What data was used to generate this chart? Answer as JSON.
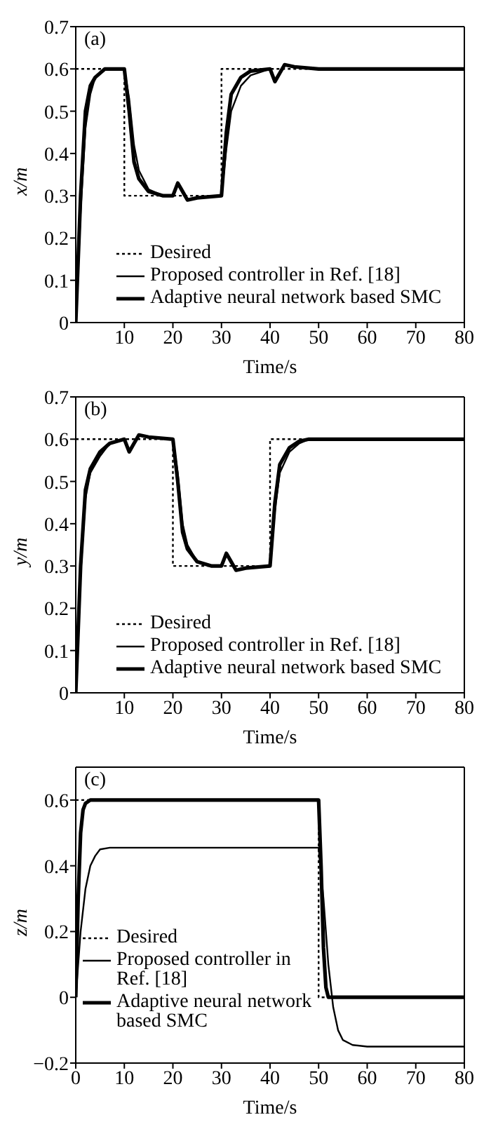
{
  "chart_data": [
    {
      "type": "line",
      "annotations": [
        "(a)"
      ],
      "xlabel": "Time/s",
      "ylabel": "x/m",
      "xlim": [
        0,
        80
      ],
      "xticks": [
        10,
        20,
        30,
        40,
        50,
        60,
        70,
        80
      ],
      "ylim": [
        0,
        0.7
      ],
      "yticks": [
        0,
        0.1,
        0.2,
        0.3,
        0.4,
        0.5,
        0.6,
        0.7
      ],
      "grid": false,
      "legend": "bottom left",
      "series": [
        {
          "name": "Desired",
          "color": "#000000",
          "line_style": "dotted",
          "x": [
            0,
            10,
            10,
            30,
            30,
            80
          ],
          "values": [
            0.6,
            0.6,
            0.3,
            0.3,
            0.6,
            0.6
          ]
        },
        {
          "name": "Proposed controller in Ref. [18]",
          "color": "#000000",
          "line_style": "solid",
          "x": [
            0,
            1,
            2,
            3,
            4,
            6,
            10,
            11,
            12,
            13,
            15,
            18,
            20,
            21,
            22,
            23,
            25,
            30,
            31,
            32,
            34,
            36,
            40,
            41,
            42,
            43,
            45,
            50,
            80
          ],
          "values": [
            0,
            0.26,
            0.46,
            0.54,
            0.58,
            0.6,
            0.6,
            0.53,
            0.42,
            0.36,
            0.315,
            0.3,
            0.3,
            0.33,
            0.31,
            0.29,
            0.295,
            0.3,
            0.41,
            0.5,
            0.56,
            0.585,
            0.6,
            0.57,
            0.59,
            0.61,
            0.605,
            0.6,
            0.6
          ]
        },
        {
          "name": "Adaptive neural network based SMC",
          "color": "#000000",
          "line_style": "solid",
          "x": [
            0,
            1,
            2,
            3,
            4,
            6,
            10,
            11,
            12,
            13,
            15,
            18,
            20,
            21,
            22,
            23,
            25,
            30,
            31,
            32,
            34,
            36,
            40,
            41,
            42,
            43,
            45,
            50,
            80
          ],
          "values": [
            0,
            0.3,
            0.5,
            0.56,
            0.58,
            0.6,
            0.6,
            0.5,
            0.38,
            0.34,
            0.31,
            0.3,
            0.3,
            0.33,
            0.31,
            0.29,
            0.295,
            0.3,
            0.45,
            0.54,
            0.58,
            0.595,
            0.6,
            0.57,
            0.59,
            0.61,
            0.605,
            0.6,
            0.6
          ]
        }
      ]
    },
    {
      "type": "line",
      "annotations": [
        "(b)"
      ],
      "xlabel": "Time/s",
      "ylabel": "y/m",
      "xlim": [
        0,
        80
      ],
      "xticks": [
        10,
        20,
        30,
        40,
        50,
        60,
        70,
        80
      ],
      "ylim": [
        0,
        0.7
      ],
      "yticks": [
        0,
        0.1,
        0.2,
        0.3,
        0.4,
        0.5,
        0.6,
        0.7
      ],
      "grid": false,
      "legend": "bottom left",
      "series": [
        {
          "name": "Desired",
          "color": "#000000",
          "line_style": "dotted",
          "x": [
            0,
            20,
            20,
            40,
            40,
            80
          ],
          "values": [
            0.6,
            0.6,
            0.3,
            0.3,
            0.6,
            0.6
          ]
        },
        {
          "name": "Proposed controller in Ref. [18]",
          "color": "#000000",
          "line_style": "solid",
          "x": [
            0,
            1,
            2,
            3,
            5,
            7,
            10,
            11,
            12,
            13,
            15,
            20,
            21,
            22,
            23,
            25,
            28,
            30,
            31,
            32,
            33,
            35,
            40,
            41,
            42,
            44,
            46,
            48,
            80
          ],
          "values": [
            0,
            0.28,
            0.46,
            0.52,
            0.56,
            0.59,
            0.6,
            0.57,
            0.59,
            0.61,
            0.605,
            0.6,
            0.52,
            0.4,
            0.35,
            0.31,
            0.3,
            0.3,
            0.33,
            0.31,
            0.29,
            0.295,
            0.3,
            0.43,
            0.52,
            0.57,
            0.59,
            0.6,
            0.6
          ]
        },
        {
          "name": "Adaptive neural network based SMC",
          "color": "#000000",
          "line_style": "solid",
          "x": [
            0,
            1,
            2,
            3,
            5,
            7,
            10,
            11,
            12,
            13,
            15,
            20,
            21,
            22,
            23,
            25,
            28,
            30,
            31,
            32,
            33,
            35,
            40,
            41,
            42,
            44,
            46,
            48,
            80
          ],
          "values": [
            0,
            0.3,
            0.48,
            0.53,
            0.57,
            0.59,
            0.6,
            0.57,
            0.59,
            0.61,
            0.605,
            0.6,
            0.5,
            0.38,
            0.34,
            0.31,
            0.3,
            0.3,
            0.33,
            0.31,
            0.29,
            0.295,
            0.3,
            0.45,
            0.54,
            0.58,
            0.595,
            0.6,
            0.6
          ]
        }
      ]
    },
    {
      "type": "line",
      "annotations": [
        "(c)"
      ],
      "xlabel": "Time/s",
      "ylabel": "z/m",
      "xlim": [
        0,
        80
      ],
      "xticks": [
        0,
        10,
        20,
        30,
        40,
        50,
        60,
        70,
        80
      ],
      "ylim": [
        -0.2,
        0.7
      ],
      "yticks": [
        -0.2,
        0,
        0.2,
        0.4,
        0.6
      ],
      "grid": false,
      "legend": "bottom left",
      "series": [
        {
          "name": "Desired",
          "color": "#000000",
          "line_style": "dotted",
          "x": [
            0,
            50,
            50,
            80
          ],
          "values": [
            0.6,
            0.6,
            0,
            0
          ]
        },
        {
          "name": "Proposed controller in Ref. [18]",
          "color": "#000000",
          "line_style": "solid",
          "x": [
            0,
            1,
            2,
            3,
            4,
            5,
            7,
            50,
            51,
            52,
            53,
            54,
            55,
            57,
            60,
            80
          ],
          "values": [
            0,
            0.2,
            0.33,
            0.4,
            0.43,
            0.45,
            0.455,
            0.455,
            0.3,
            0.1,
            -0.03,
            -0.1,
            -0.13,
            -0.145,
            -0.15,
            -0.15
          ]
        },
        {
          "name": "Adaptive neural network based SMC",
          "color": "#000000",
          "line_style": "solid",
          "x": [
            0,
            0.5,
            1,
            1.5,
            2,
            3,
            50,
            50.5,
            51,
            51.5,
            52,
            80
          ],
          "values": [
            0,
            0.3,
            0.5,
            0.57,
            0.59,
            0.6,
            0.6,
            0.4,
            0.15,
            0.03,
            0,
            0
          ]
        }
      ]
    }
  ]
}
